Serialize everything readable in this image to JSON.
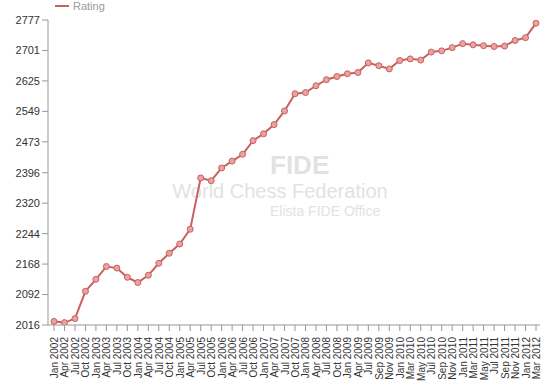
{
  "chart_data": {
    "type": "line",
    "annotations": [
      "FIDE",
      "World Chess Federation",
      "Elista FIDE Office"
    ],
    "legend": "upper left",
    "grid": false,
    "categories": [
      "Jan 2002",
      "Apr 2002",
      "Jul 2002",
      "Oct 2002",
      "Jan 2003",
      "Apr 2003",
      "Jul 2003",
      "Oct 2003",
      "Jan 2004",
      "Apr 2004",
      "Jul 2004",
      "Oct 2004",
      "Jan 2005",
      "Apr 2005",
      "Jul 2005",
      "Oct 2005",
      "Jan 2006",
      "Apr 2006",
      "Jul 2006",
      "Oct 2006",
      "Jan 2007",
      "Apr 2007",
      "Jul 2007",
      "Oct 2007",
      "Jan 2008",
      "Apr 2008",
      "Jul 2008",
      "Oct 2008",
      "Jan 2009",
      "Apr 2009",
      "Jul 2009",
      "Sep 2009",
      "Nov 2009",
      "Jan 2010",
      "Mar 2010",
      "May 2010",
      "Jul 2010",
      "Sep 2010",
      "Nov 2010",
      "Jan 2011",
      "Mar 2011",
      "May 2011",
      "Jul 2011",
      "Sep 2011",
      "Nov 2011",
      "Jan 2012",
      "Mar 2012"
    ],
    "series": [
      {
        "name": "Rating",
        "color": "#c8605e",
        "marker": "circle",
        "values": [
          2025,
          2022,
          2032,
          2100,
          2130,
          2162,
          2158,
          2135,
          2122,
          2140,
          2170,
          2195,
          2218,
          2255,
          2383,
          2376,
          2408,
          2425,
          2442,
          2476,
          2493,
          2516,
          2550,
          2593,
          2596,
          2613,
          2628,
          2636,
          2643,
          2646,
          2670,
          2663,
          2655,
          2676,
          2680,
          2677,
          2697,
          2700,
          2708,
          2718,
          2715,
          2713,
          2711,
          2712,
          2726,
          2733,
          2769
        ]
      }
    ],
    "ylim": [
      2016,
      2777
    ],
    "yticks": [
      2016,
      2092,
      2168,
      2244,
      2320,
      2396,
      2473,
      2549,
      2625,
      2701,
      2777
    ]
  }
}
